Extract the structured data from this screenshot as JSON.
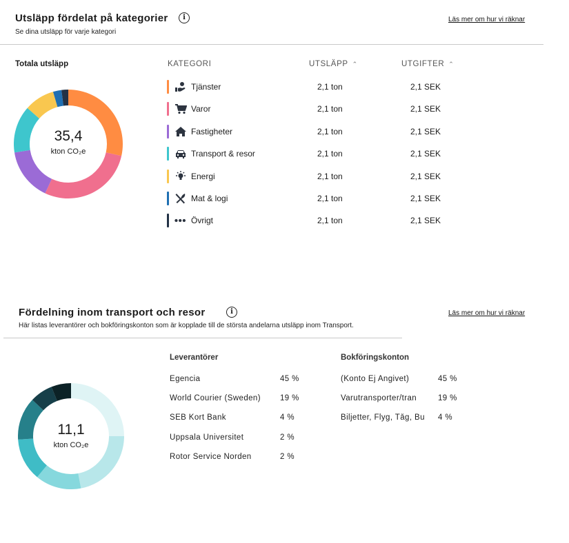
{
  "section1": {
    "title": "Utsläpp fördelat på kategorier",
    "subtitle": "Se dina utsläpp för varje kategori",
    "link": "Läs mer om hur vi räknar",
    "total_label": "Totala utsläpp",
    "donut_value": "35,4",
    "donut_unit": "kton CO₂e",
    "columns": {
      "kategori": "KATEGORI",
      "utslapp": "UTSLÄPP",
      "utgifter": "UTGIFTER"
    },
    "categories": [
      {
        "name": "Tjänster",
        "icon": "service-hand-icon",
        "color": "#ff8c42",
        "utslapp": "2,1 ton",
        "utgifter": "2,1 SEK"
      },
      {
        "name": "Varor",
        "icon": "cart-icon",
        "color": "#f06f8e",
        "utslapp": "2,1 ton",
        "utgifter": "2,1 SEK"
      },
      {
        "name": "Fastigheter",
        "icon": "house-icon",
        "color": "#9b6bd6",
        "utslapp": "2,1 ton",
        "utgifter": "2,1 SEK"
      },
      {
        "name": "Transport & resor",
        "icon": "car-icon",
        "color": "#3ec6cd",
        "utslapp": "2,1 ton",
        "utgifter": "2,1 SEK"
      },
      {
        "name": "Energi",
        "icon": "lightbulb-icon",
        "color": "#f9c74f",
        "utslapp": "2,1 ton",
        "utgifter": "2,1 SEK"
      },
      {
        "name": "Mat & logi",
        "icon": "cutlery-icon",
        "color": "#1f6fb2",
        "utslapp": "2,1 ton",
        "utgifter": "2,1 SEK"
      },
      {
        "name": "Övrigt",
        "icon": "more-dots-icon",
        "color": "#233246",
        "utslapp": "2,1 ton",
        "utgifter": "2,1 SEK"
      }
    ],
    "donut_shares": [
      0.285,
      0.285,
      0.155,
      0.14,
      0.09,
      0.025,
      0.02
    ]
  },
  "section2": {
    "title": "Fördelning inom transport och resor",
    "subtitle": "Här listas leverantörer och bokföringskonton som är kopplade till de största andelarna utsläpp inom Transport.",
    "link": "Läs mer om hur vi räknar",
    "donut_value": "11,1",
    "donut_unit": "kton CO₂e",
    "suppliers_head": "Leverantörer",
    "accounts_head": "Bokföringskonton",
    "suppliers": [
      {
        "name": "Egencia",
        "pct": "45 %"
      },
      {
        "name": "World Courier (Sweden)",
        "pct": "19 %"
      },
      {
        "name": "SEB Kort Bank",
        "pct": "4 %"
      },
      {
        "name": "Uppsala Universitet",
        "pct": "2 %"
      },
      {
        "name": "Rotor Service Norden",
        "pct": "2 %"
      }
    ],
    "accounts": [
      {
        "name": "(Konto Ej Angivet)",
        "pct": "45 %"
      },
      {
        "name": "Varutransporter/tran",
        "pct": "19 %"
      },
      {
        "name": "Biljetter, Flyg, Tåg, Bu",
        "pct": "4 %"
      }
    ],
    "donut_shares": [
      0.25,
      0.22,
      0.14,
      0.13,
      0.13,
      0.07,
      0.06
    ],
    "donut_colors": [
      "#dff4f5",
      "#b8e7ea",
      "#86d8dd",
      "#3fbcc6",
      "#26808a",
      "#163f49",
      "#0c2226"
    ]
  }
}
